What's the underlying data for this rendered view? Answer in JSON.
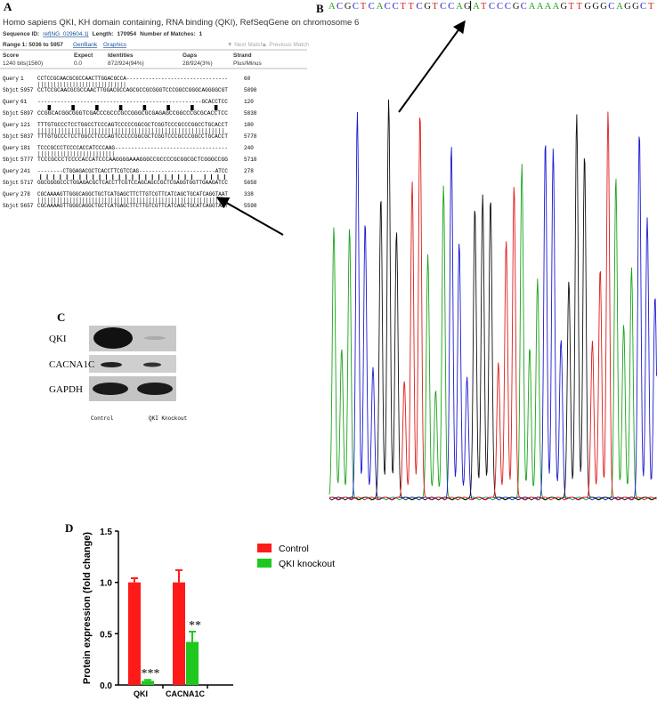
{
  "panel_a": {
    "label": "A",
    "title": "Homo sapiens QKI, KH domain containing, RNA binding (QKI), RefSeqGene on chromosome 6",
    "sequence_id_label": "Sequence ID:",
    "sequence_id": "ref|NG_029604.1|",
    "length_label": "Length:",
    "length": 170954,
    "matches_label": "Number of Matches:",
    "matches": 1,
    "range": "Range 1: 5036 to 5957",
    "genbank": "GenBank",
    "graphics": "Graphics",
    "next_match": "▼ Next Match",
    "previous_match": "▲ Previous Match",
    "score_headers": [
      "Score",
      "Expect",
      "Identities",
      "Gaps",
      "Strand"
    ],
    "score_values": [
      "1240 bits(1560)",
      "0.0",
      "872/924(94%)",
      "28/924(3%)",
      "Plus/Minus"
    ],
    "query_label": "Query",
    "sbjct_label": "Sbjct",
    "alignment": [
      {
        "query": {
          "start": 1,
          "seq": "CCTCCGCAACGCGCCAACTTGGACGCCA--------------------------------",
          "end": 60
        },
        "match": "||||||||||||||||||||||||||||",
        "sbjct": {
          "start": 5957,
          "seq": "CCTCCGCAACGCGCCAACTTGGACGCCAGCGCCGCGGGTCCCGGCCGGGCAGGGGCGT",
          "end": 5898
        }
      },
      {
        "query": {
          "start": 61,
          "seq": "--------------------------------------------------GCACCTCC",
          "end": 120
        },
        "match": "                                                  ||||||||",
        "sbjct": {
          "start": 5897,
          "seq": "CCGGCACGGCGGGTCGACCCGCCCGCCGGGCGCGAGAGCCGGCCCGCGCACCTCC",
          "end": 5838
        }
      },
      {
        "query": {
          "start": 121,
          "seq": "TTTGTGCCCTCCTGGCCTCCCAGTCCCCCGGCGCTCGGTCCCGCCCGGCCTGCACCT",
          "end": 180
        },
        "match": "||||||||||||||||||||||||||||||||||||||||||||||||||||||||",
        "sbjct": {
          "start": 5837,
          "seq": "TTTGTGCCCTCCTGGCCTCCCAGTCCCCCGGCGCTCGGTCCCGCCCGGCCTGCACCT",
          "end": 5778
        }
      },
      {
        "query": {
          "start": 181,
          "seq": "TCCCGCCCTCCCCACCATCCCAAG-----------------------------------",
          "end": 240
        },
        "match": "||||||||||||||||||||||||",
        "sbjct": {
          "start": 5777,
          "seq": "TCCCGCCCTCCCCACCATCCCAAGGGGAAAGGGCCGCCCCGCGGCGCTCGGGCCGG",
          "end": 5718
        }
      },
      {
        "query": {
          "start": 241,
          "seq": "--------CTGGAGACGCTCACCTTCGTCCAG------------------------ATCC",
          "end": 278
        },
        "match": "        ||||||||||||||||||||||||                        ||||",
        "sbjct": {
          "start": 5717,
          "seq": "GGCGGGGCCCTGGAGACGCTCACCTTCGTCCAGCAGCCGCTCGAGGTGGTTGAAGATCC",
          "end": 5658
        }
      },
      {
        "query": {
          "start": 278,
          "seq": "CGCAAAAGTTGGGCAGGCTGCTCATGAGCTTCTTGTCGTTCATCAGCTGCATCAGGTAAT",
          "end": 338
        },
        "match": "||||||||||||||||||||||||||||||||||||||||||||||||||||||||||||",
        "sbjct": {
          "start": 5657,
          "seq": "CGCAAAAGTTGGGCAGGCTGCTCATGAGCTTCTTGTCGTTCATCAGCTGCATCAGGTAAT",
          "end": 5598
        }
      }
    ]
  },
  "panel_b": {
    "label": "B",
    "sequence_left": "ACGCTCACCTTCGTCCAG",
    "sequence_right": "ATCCCGCAAAAGTTGGGCAGGCT"
  },
  "panel_c": {
    "label": "C",
    "rows": [
      "QKI",
      "CACNA1C",
      "GAPDH"
    ],
    "lanes": [
      "Control",
      "QKI Knockout"
    ]
  },
  "chart_data": {
    "type": "bar",
    "label": "D",
    "y_label": "Protein expression (fold change)",
    "categories": [
      "QKI",
      "CACNA1C"
    ],
    "series": [
      {
        "name": "Control",
        "color": "#ff1a1a",
        "values": [
          1.0,
          1.0
        ],
        "errors": [
          0.04,
          0.12
        ]
      },
      {
        "name": "QKI knockout",
        "color": "#1ec81e",
        "values": [
          0.04,
          0.42
        ],
        "errors": [
          0.01,
          0.1
        ],
        "significance": [
          "***",
          "**"
        ]
      }
    ],
    "ylim": [
      0,
      1.5
    ],
    "yticks": [
      {
        "value": 0,
        "label": "0.0"
      },
      {
        "value": 0.5,
        "label": "0.5"
      },
      {
        "value": 1,
        "label": "1.0"
      },
      {
        "value": 1.5,
        "label": "1.5"
      }
    ],
    "legend": "right"
  }
}
